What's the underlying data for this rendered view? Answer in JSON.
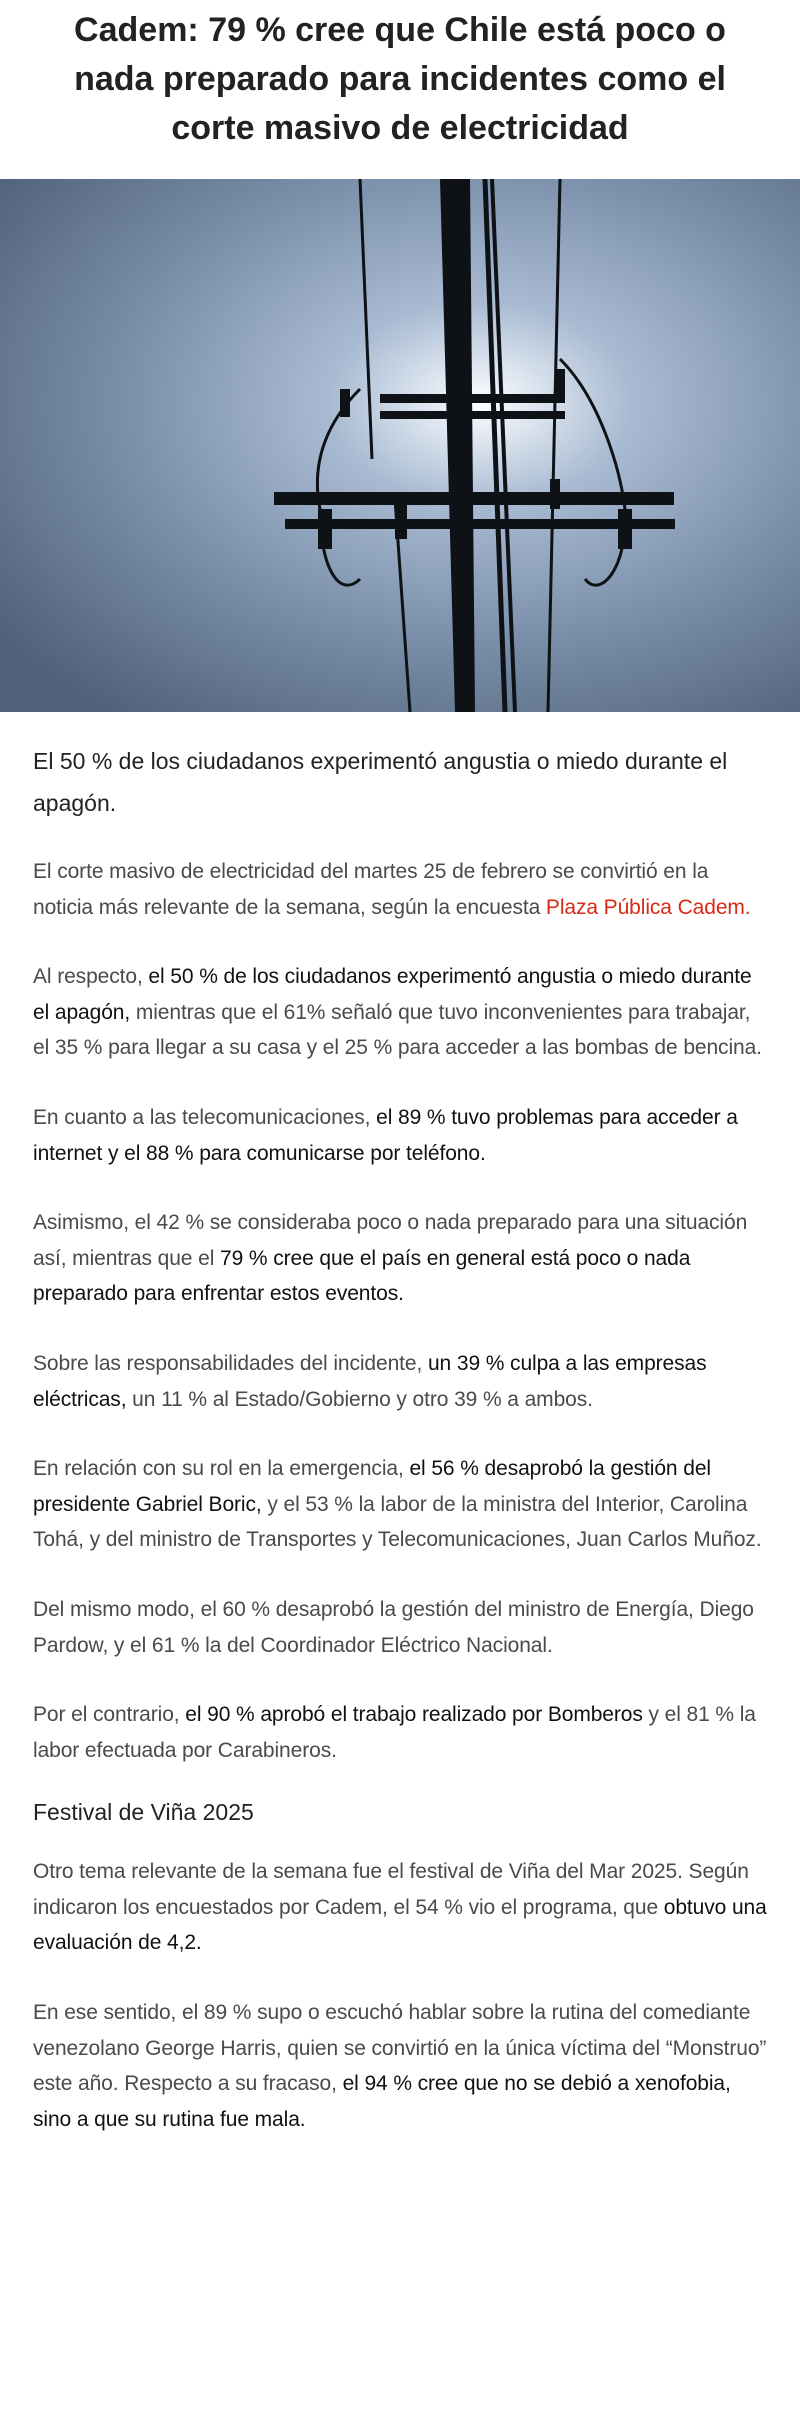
{
  "article": {
    "title": "Cadem: 79 % cree que Chile está poco o nada preparado para incidentes como el corte masivo de electricidad",
    "hero_image": "power-line-pole-silhouette-against-sun",
    "lead": "El 50 % de los ciudadanos experimentó angustia o miedo durante el apagón.",
    "link_color": "#d92a14",
    "paragraphs": [
      {
        "s0": "El corte masivo de electricidad del martes 25 de febrero se convirtió en la noticia más relevante de la semana, según la encuesta ",
        "link": "Plaza Pública Cadem."
      },
      {
        "s0": "Al respecto, ",
        "b0": "el 50 % de los ciudadanos experimentó angustia o miedo durante el apagón,",
        "s1": " mientras que el 61% señaló que tuvo inconvenientes para trabajar, el 35 % para llegar a su casa y el 25 % para acceder a las bombas de bencina."
      },
      {
        "s0": "En cuanto a las telecomunicaciones, ",
        "b0": "el 89 % tuvo problemas para acceder a internet y el 88 % para comunicarse por teléfono."
      },
      {
        "s0": "Asimismo, el 42 % se consideraba poco o nada preparado para una situación así, mientras que el ",
        "b0": "79 % cree que el país en general está poco o nada preparado para enfrentar estos eventos."
      },
      {
        "s0": "Sobre las responsabilidades del incidente, ",
        "b0": "un 39 % culpa a las empresas eléctricas,",
        "s1": " un 11 % al Estado/Gobierno y otro 39 % a ambos."
      },
      {
        "s0": "En relación con su rol en la emergencia, ",
        "b0": "el 56 % desaprobó la gestión del presidente Gabriel Boric,",
        "s1": " y el 53 % la labor de la ministra del Interior, Carolina Tohá, y del ministro de Transportes y Telecomunicaciones, Juan Carlos Muñoz."
      },
      {
        "s0": "Del mismo modo, el 60 % desaprobó la gestión del ministro de Energía, Diego Pardow, y el 61 % la del Coordinador Eléctrico Nacional."
      },
      {
        "s0": "Por el contrario, ",
        "b0": "el 90 % aprobó el trabajo realizado por Bomberos",
        "s1": " y el 81 % la labor efectuada por Carabineros."
      }
    ],
    "section_heading": "Festival de Viña 2025",
    "section_paragraphs": [
      {
        "s0": "Otro tema relevante de la semana fue el festival de Viña del Mar 2025. Según indicaron los encuestados por Cadem, el 54 % vio el programa, que ",
        "b0": "obtuvo una evaluación de 4,2."
      },
      {
        "s0": "En ese sentido, el 89 % supo o escuchó hablar sobre la rutina del comediante venezolano George Harris, quien se convirtió en la única víctima del “Monstruo” este año. Respecto a su fracaso, ",
        "b0": "el 94 % cree que no se debió a xenofobia, sino a que su rutina fue mala."
      }
    ]
  }
}
